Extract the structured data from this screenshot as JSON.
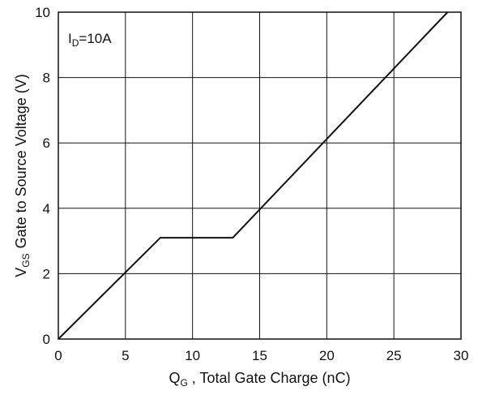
{
  "chart_data": {
    "type": "line",
    "title": "",
    "xlabel": {
      "symbol": "Q",
      "subscript": "G",
      "text": " , Total Gate Charge (nC)"
    },
    "ylabel": {
      "symbol": "V",
      "subscript": "GS",
      "text": "Gate to Source Voltage (V)"
    },
    "xlim": [
      0,
      30
    ],
    "ylim": [
      0,
      10
    ],
    "xticks": [
      0,
      5,
      10,
      15,
      20,
      25,
      30
    ],
    "yticks": [
      0,
      2,
      4,
      6,
      8,
      10
    ],
    "xtick_labels": [
      "0",
      "5",
      "10",
      "15",
      "20",
      "25",
      "30"
    ],
    "ytick_labels": [
      "0",
      "2",
      "4",
      "6",
      "8",
      "10"
    ],
    "grid": true,
    "annotation": {
      "symbol": "I",
      "subscript": "D",
      "text": "=10A"
    },
    "series": [
      {
        "x": [
          0,
          7.6,
          13,
          29
        ],
        "y": [
          0,
          3.1,
          3.1,
          10
        ],
        "color": "#111111"
      }
    ]
  }
}
